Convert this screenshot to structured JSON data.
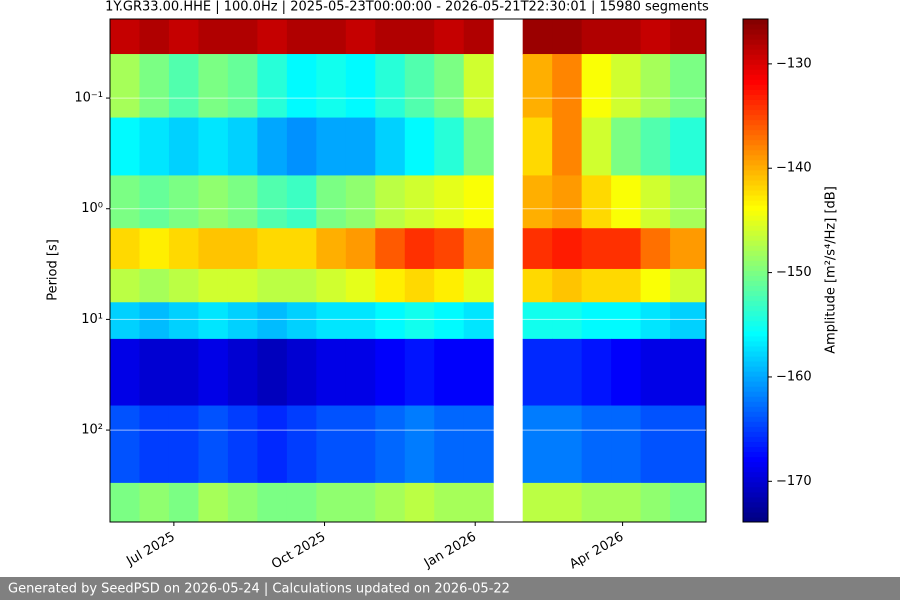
{
  "chart_data": {
    "type": "spectrogram",
    "title": "1Y.GR33.00.HHE | 100.0Hz | 2025-05-23T00:00:00 - 2026-05-21T22:30:01 | 15980 segments",
    "ylabel": "Period [s]",
    "colorbar_label": "Amplitude [m²/s⁴/Hz] [dB]",
    "footer": "Generated by SeedPSD on 2026-05-24 | Calculations updated on 2026-05-22",
    "colormap": "jet",
    "x": [
      "2025-05-23",
      "2025-06-10",
      "2025-06-28",
      "2025-07-16",
      "2025-08-03",
      "2025-08-21",
      "2025-09-08",
      "2025-09-26",
      "2025-10-14",
      "2025-11-01",
      "2025-11-19",
      "2025-12-07",
      "2025-12-25",
      "2026-01-12",
      "2026-01-30",
      "2026-02-17",
      "2026-03-07",
      "2026-03-25",
      "2026-04-12",
      "2026-04-30"
    ],
    "xlim": [
      "2025-05-23T00:00:00",
      "2026-05-21T22:30:01"
    ],
    "xticks": [
      {
        "value": "2025-07-01",
        "label": "Jul 2025"
      },
      {
        "value": "2025-10-01",
        "label": "Oct 2025"
      },
      {
        "value": "2026-01-01",
        "label": "Jan 2026"
      },
      {
        "value": "2026-04-01",
        "label": "Apr 2026"
      }
    ],
    "period_bins": [
      0.0193,
      0.04,
      0.15,
      0.5,
      1.5,
      3.5,
      7,
      15,
      60,
      300,
      677
    ],
    "ylim": [
      0.0193,
      677
    ],
    "y_log": true,
    "y_inverted": true,
    "yticks": [
      {
        "value": 0.1,
        "label": "10⁻¹"
      },
      {
        "value": 1,
        "label": "10⁰"
      },
      {
        "value": 10,
        "label": "10¹"
      },
      {
        "value": 100,
        "label": "10²"
      }
    ],
    "grid": true,
    "clim": [
      -173.9,
      -125.7
    ],
    "cticks": [
      {
        "value": -130,
        "label": "−130"
      },
      {
        "value": -140,
        "label": "−140"
      },
      {
        "value": -150,
        "label": "−150"
      },
      {
        "value": -160,
        "label": "−160"
      },
      {
        "value": -170,
        "label": "−170"
      }
    ],
    "values": [
      [
        -129,
        -128,
        -129,
        -128,
        -128,
        -129,
        -128,
        -128,
        -129,
        -128,
        -128,
        -129,
        -128,
        null,
        -127,
        -127,
        -128,
        -128,
        -129,
        -128
      ],
      [
        -148,
        -150,
        -152,
        -150,
        -151,
        -154,
        -156,
        -155,
        -156,
        -154,
        -152,
        -150,
        -146,
        null,
        -140,
        -138,
        -144,
        -146,
        -148,
        -150
      ],
      [
        -156,
        -157,
        -158,
        -157,
        -158,
        -160,
        -161,
        -160,
        -160,
        -158,
        -156,
        -154,
        -150,
        null,
        -142,
        -138,
        -146,
        -150,
        -152,
        -154
      ],
      [
        -150,
        -151,
        -150,
        -149,
        -150,
        -152,
        -153,
        -150,
        -149,
        -147,
        -146,
        -145,
        -144,
        null,
        -140,
        -139,
        -142,
        -144,
        -146,
        -148
      ],
      [
        -142,
        -143,
        -142,
        -141,
        -141,
        -142,
        -142,
        -140,
        -139,
        -136,
        -134,
        -135,
        -138,
        null,
        -134,
        -133,
        -134,
        -134,
        -137,
        -139
      ],
      [
        -147,
        -148,
        -147,
        -146,
        -146,
        -147,
        -147,
        -146,
        -145,
        -143,
        -142,
        -143,
        -145,
        null,
        -142,
        -141,
        -142,
        -142,
        -144,
        -146
      ],
      [
        -158,
        -159,
        -158,
        -157,
        -158,
        -159,
        -158,
        -157,
        -157,
        -156,
        -155,
        -156,
        -157,
        null,
        -155,
        -155,
        -156,
        -156,
        -157,
        -158
      ],
      [
        -169,
        -170,
        -170,
        -169,
        -170,
        -171,
        -170,
        -169,
        -169,
        -168,
        -167,
        -168,
        -168,
        null,
        -166,
        -166,
        -167,
        -168,
        -169,
        -169
      ],
      [
        -164,
        -165,
        -165,
        -164,
        -165,
        -166,
        -165,
        -164,
        -164,
        -163,
        -162,
        -163,
        -163,
        null,
        -162,
        -162,
        -163,
        -163,
        -164,
        -164
      ],
      [
        -150,
        -149,
        -150,
        -148,
        -149,
        -150,
        -150,
        -149,
        -149,
        -148,
        -147,
        -148,
        -148,
        null,
        -147,
        -147,
        -148,
        -148,
        -149,
        -150
      ]
    ]
  }
}
